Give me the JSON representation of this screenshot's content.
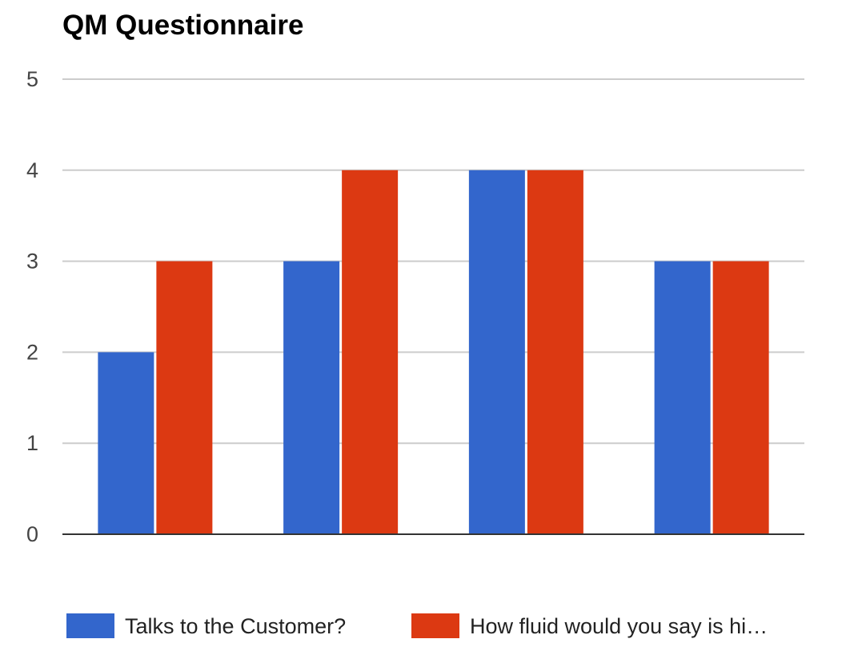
{
  "chart_data": {
    "type": "bar",
    "title": "QM Questionnaire",
    "xlabel": "",
    "ylabel": "",
    "categories": [
      "",
      "",
      "",
      ""
    ],
    "series": [
      {
        "name": "Talks to the Customer?",
        "color": "#3366cc",
        "values": [
          2,
          3,
          4,
          3
        ]
      },
      {
        "name": "How fluid would you say is hi…",
        "color": "#dc3912",
        "values": [
          3,
          4,
          4,
          3
        ]
      }
    ],
    "ylim": [
      0,
      5
    ],
    "yticks": [
      "0",
      "1",
      "2",
      "3",
      "4",
      "5"
    ],
    "grid": true,
    "legend_position": "bottom"
  }
}
